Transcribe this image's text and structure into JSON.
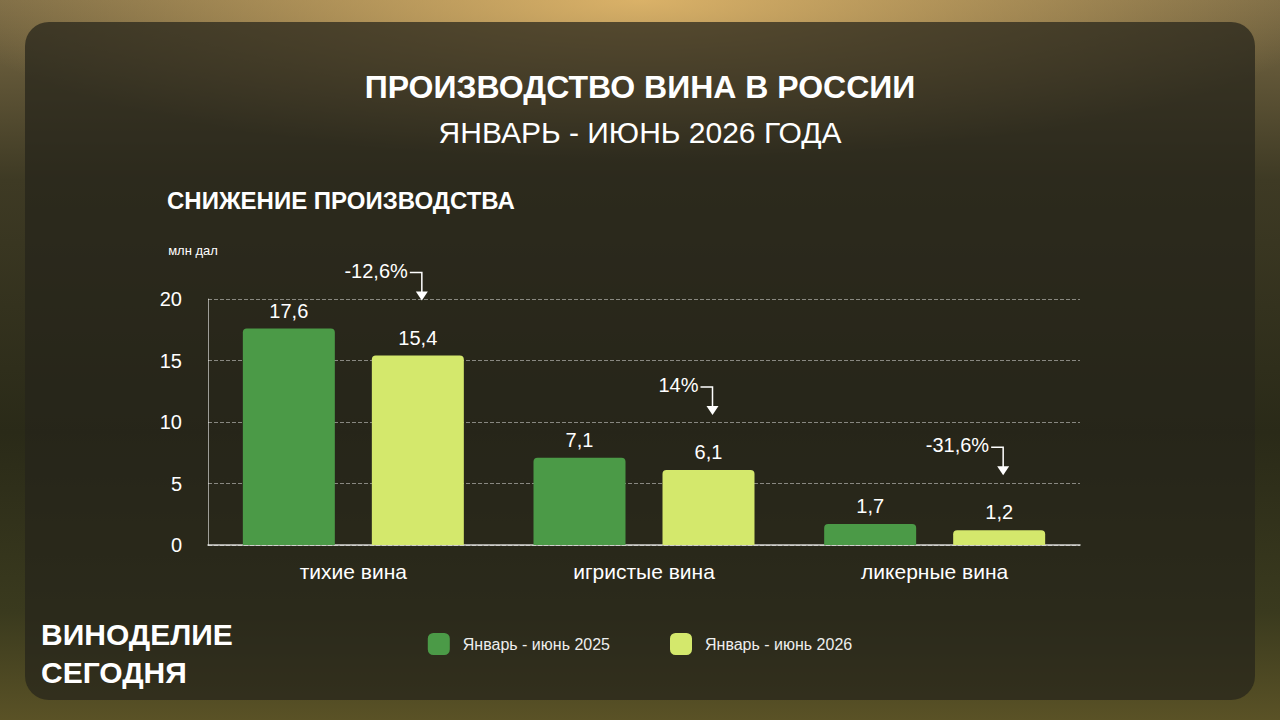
{
  "chart_data": {
    "type": "bar",
    "title": "ПРОИЗВОДСТВО ВИНА В РОССИИ",
    "subtitle": "ЯНВАРЬ - ИЮНЬ 2026 ГОДА",
    "heading": "СНИЖЕНИЕ ПРОИЗВОДСТВА",
    "y_label": "млн дал",
    "categories": [
      "тихие вина",
      "игристые вина",
      "ликерные вина"
    ],
    "series": [
      {
        "name": "Январь - июнь 2025",
        "color": "#4b9a47",
        "values": [
          17.6,
          7.1,
          1.7
        ],
        "value_labels": [
          "17,6",
          "7,1",
          "1,7"
        ]
      },
      {
        "name": "Январь - июнь 2026",
        "color": "#d4e86c",
        "values": [
          15.4,
          6.1,
          1.2
        ],
        "value_labels": [
          "15,4",
          "6,1",
          "1,2"
        ]
      }
    ],
    "ylim": [
      0,
      20
    ],
    "yticks": [
      0,
      5,
      10,
      15,
      20
    ],
    "grid": true,
    "legend": "bottom",
    "data_labels": true,
    "annotations": [
      {
        "category": "тихие вина",
        "text": "-12,6%"
      },
      {
        "category": "игристые вина",
        "text": "14%"
      },
      {
        "category": "ликерные вина",
        "text": "-31,6%"
      }
    ],
    "footer": [
      "ВИНОДЕЛИЕ",
      "СЕГОДНЯ"
    ]
  }
}
